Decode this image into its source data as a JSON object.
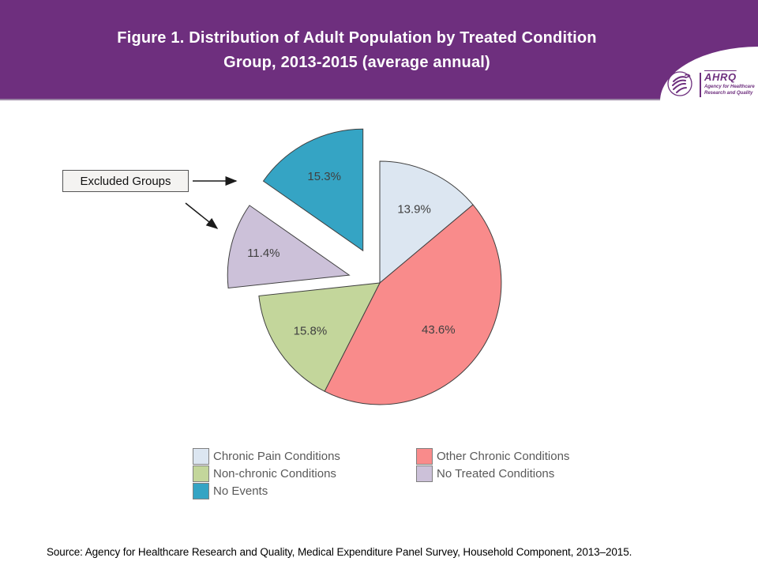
{
  "header": {
    "banner_color": "#6e2f7e",
    "title_line1": "Figure 1. Distribution of Adult Population by Treated Condition",
    "title_line2": "Group, 2013-2015 (average annual)",
    "logo": {
      "acronym": "AHRQ",
      "tagline_line1": "Agency for Healthcare",
      "tagline_line2": "Research and Quality"
    }
  },
  "chart_data": {
    "type": "pie",
    "title": "Figure 1. Distribution of Adult Population by Treated Condition Group, 2013-2015 (average annual)",
    "value_unit": "%",
    "direction": "clockwise",
    "start_angle_deg": 0,
    "slices": [
      {
        "label": "Chronic Pain Conditions",
        "value": 13.9,
        "color": "#dce6f1",
        "exploded": false
      },
      {
        "label": "Other Chronic Conditions",
        "value": 43.6,
        "color": "#f98b8b",
        "exploded": false
      },
      {
        "label": "Non-chronic Conditions",
        "value": 15.8,
        "color": "#c3d69b",
        "exploded": false
      },
      {
        "label": "No Treated Conditions",
        "value": 11.4,
        "color": "#ccc1d9",
        "exploded": true
      },
      {
        "label": "No Events",
        "value": 15.3,
        "color": "#35a4c4",
        "exploded": true
      }
    ],
    "annotation": {
      "label": "Excluded Groups",
      "points_to": [
        "No Events",
        "No Treated Conditions"
      ]
    },
    "legend": {
      "position": "bottom",
      "column1": [
        "Chronic Pain Conditions",
        "Non-chronic Conditions",
        "No Events"
      ],
      "column2": [
        "Other Chronic Conditions",
        "No Treated Conditions"
      ]
    }
  },
  "source": {
    "text": "Source: Agency for Healthcare Research and Quality, Medical Expenditure Panel Survey, Household Component, 2013–2015."
  }
}
